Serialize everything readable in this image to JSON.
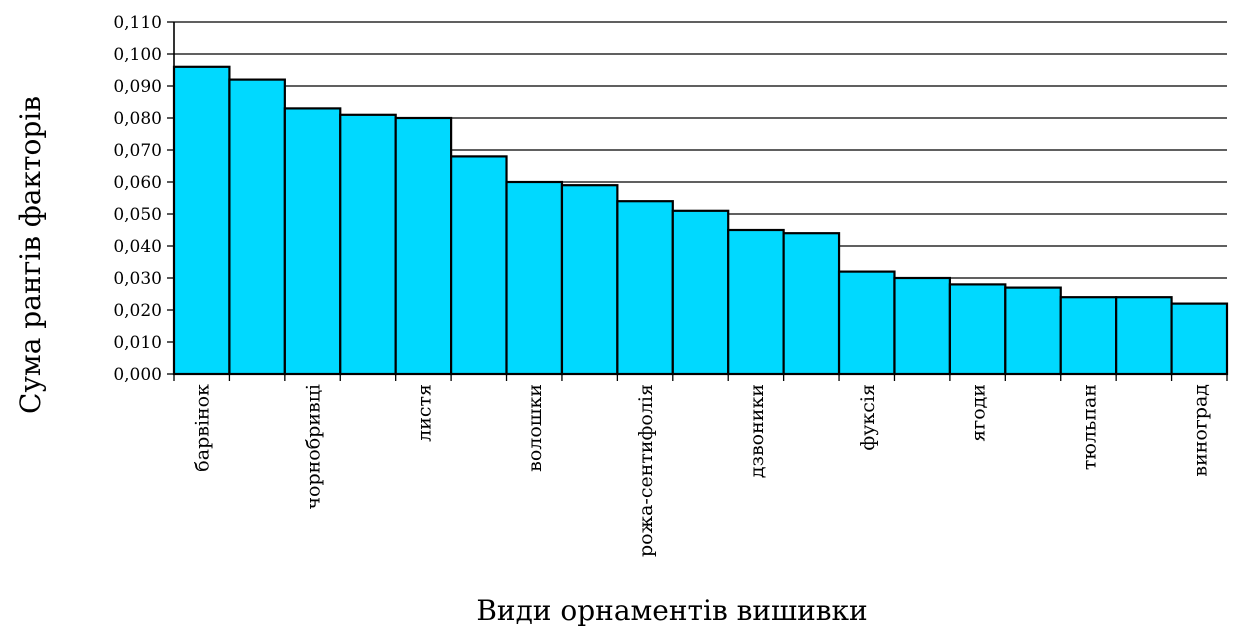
{
  "chart_data": {
    "type": "bar",
    "title": "",
    "xlabel": "Види орнаментів вишивки",
    "ylabel": "Сума рангів факторів",
    "ylim": [
      0,
      0.11
    ],
    "yticks": [
      "0,000",
      "0,010",
      "0,020",
      "0,030",
      "0,040",
      "0,050",
      "0,060",
      "0,070",
      "0,080",
      "0,090",
      "0,100",
      "0,110"
    ],
    "categories": [
      {
        "label": "барвінок",
        "shown": true
      },
      {
        "label": "",
        "shown": false
      },
      {
        "label": "чорнобривці",
        "shown": true
      },
      {
        "label": "",
        "shown": false
      },
      {
        "label": "листя",
        "shown": true
      },
      {
        "label": "",
        "shown": false
      },
      {
        "label": "волошки",
        "shown": true
      },
      {
        "label": "",
        "shown": false
      },
      {
        "label": "рожа-сентифолія",
        "shown": true
      },
      {
        "label": "",
        "shown": false
      },
      {
        "label": "дзвоники",
        "shown": true
      },
      {
        "label": "",
        "shown": false
      },
      {
        "label": "фуксія",
        "shown": true
      },
      {
        "label": "",
        "shown": false
      },
      {
        "label": "ягоди",
        "shown": true
      },
      {
        "label": "",
        "shown": false
      },
      {
        "label": "тюльпан",
        "shown": true
      },
      {
        "label": "",
        "shown": false
      },
      {
        "label": "виноград",
        "shown": true
      }
    ],
    "values": [
      0.096,
      0.092,
      0.083,
      0.081,
      0.08,
      0.068,
      0.06,
      0.059,
      0.054,
      0.051,
      0.045,
      0.044,
      0.032,
      0.03,
      0.028,
      0.027,
      0.024,
      0.024,
      0.022
    ],
    "bar_color": "#00D9FF",
    "bar_stroke": "#000000",
    "grid": true,
    "legend": "none"
  }
}
